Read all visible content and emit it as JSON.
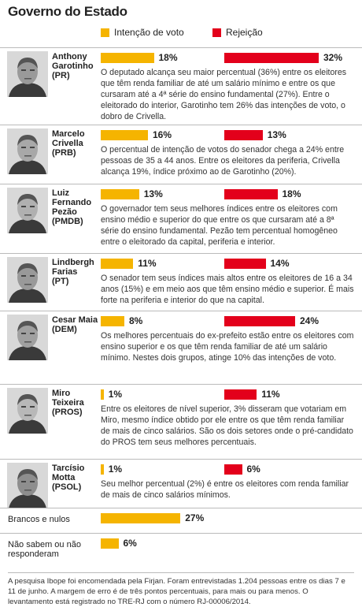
{
  "chart_data": {
    "type": "bar",
    "title": "Governo do Estado",
    "categories": [
      "Anthony Garotinho",
      "Marcelo Crivella",
      "Luiz Fernando Pezão",
      "Lindbergh Farias",
      "Cesar Maia",
      "Miro Teixeira",
      "Tarcísio Motta",
      "Brancos e nulos",
      "Não sabem ou não responderam"
    ],
    "parties": [
      "(PR)",
      "(PRB)",
      "(PMDB)",
      "(PT)",
      "(DEM)",
      "(PROS)",
      "(PSOL)",
      null,
      null
    ],
    "series": [
      {
        "name": "Intenção de voto",
        "color": "#f5b400",
        "values": [
          18,
          16,
          13,
          11,
          8,
          1,
          1,
          27,
          6
        ],
        "value_labels": [
          "18%",
          "16%",
          "13%",
          "11%",
          "8%",
          "1%",
          "1%",
          "27%",
          "6%"
        ]
      },
      {
        "name": "Rejeição",
        "color": "#e3001b",
        "values": [
          32,
          13,
          18,
          14,
          24,
          11,
          6,
          null,
          null
        ],
        "value_labels": [
          "32%",
          "13%",
          "18%",
          "14%",
          "24%",
          "11%",
          "6%",
          null,
          null
        ]
      }
    ],
    "notes": [
      "O deputado alcança seu maior percentual (36%) entre os eleitores que têm renda familiar de até um salário mínimo e entre os que cursaram até a 4ª série do ensino fundamental (27%). Entre o eleitorado do interior, Garotinho tem 26% das intenções de voto, o dobro de Crivella.",
      "O percentual de intenção de votos do senador chega a 24% entre pessoas de 35 a 44 anos. Entre os eleitores da periferia, Crivella alcança 19%, índice próximo ao de Garotinho (20%).",
      "O governador tem seus melhores índices entre os eleitores com ensino médio e superior do que entre os que cursaram até a 8ª série do ensino fundamental. Pezão tem percentual homogêneo entre o eleitorado da capital, periferia e interior.",
      "O senador tem seus índices mais altos entre os eleitores de 16 a 34 anos (15%) e em meio aos que têm ensino médio e superior. É mais forte na periferia e interior do que na capital.",
      "Os melhores percentuais do ex-prefeito estão entre os eleitores com ensino superior e os que têm renda familiar de até um salário mínimo. Nestes dois grupos, atinge 10% das intenções de voto.",
      "Entre os eleitores de nível superior, 3% disseram que votariam em Miro, mesmo índice obtido por ele entre os que têm renda familiar de mais de cinco salários. São os dois setores onde o pré-candidato do PROS tem seus melhores percentuais.",
      "Seu melhor percentual (2%) é entre os eleitores com renda familiar de mais de cinco salários mínimos.",
      null,
      null
    ],
    "footnote": "A pesquisa Ibope foi encomendada pela Firjan. Foram entrevistadas 1.204 pessoas entre os dias 7 e 11 de junho. A margem de erro é de três pontos percentuais, para mais ou para menos. O levantamento está registrado no TRE-RJ com o número RJ-00006/2014."
  }
}
